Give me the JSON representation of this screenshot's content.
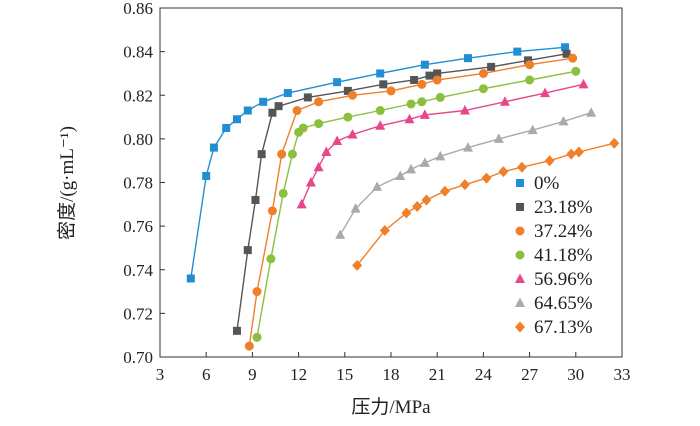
{
  "chart_data": {
    "type": "scatter",
    "title": "",
    "xlabel": "压力/MPa",
    "ylabel": "密度/(g·mL⁻¹)",
    "xlim": [
      3,
      33
    ],
    "ylim": [
      0.7,
      0.86
    ],
    "xticks": [
      3,
      6,
      9,
      12,
      15,
      18,
      21,
      24,
      27,
      30,
      33
    ],
    "yticks": [
      0.7,
      0.72,
      0.74,
      0.76,
      0.78,
      0.8,
      0.82,
      0.84,
      0.86
    ],
    "grid": false,
    "legend": "right",
    "series": [
      {
        "name": "0%",
        "marker": "square",
        "color": "#1f8fd1",
        "points": [
          [
            5.0,
            0.736
          ],
          [
            6.0,
            0.783
          ],
          [
            6.5,
            0.796
          ],
          [
            7.3,
            0.805
          ],
          [
            8.0,
            0.809
          ],
          [
            8.7,
            0.813
          ],
          [
            9.7,
            0.817
          ],
          [
            11.3,
            0.821
          ],
          [
            14.5,
            0.826
          ],
          [
            17.3,
            0.83
          ],
          [
            20.2,
            0.834
          ],
          [
            23.0,
            0.837
          ],
          [
            26.2,
            0.84
          ],
          [
            29.3,
            0.842
          ]
        ]
      },
      {
        "name": "23.18%",
        "marker": "square",
        "color": "#555555",
        "points": [
          [
            8.0,
            0.712
          ],
          [
            8.7,
            0.749
          ],
          [
            9.2,
            0.772
          ],
          [
            9.6,
            0.793
          ],
          [
            10.3,
            0.812
          ],
          [
            10.7,
            0.815
          ],
          [
            12.6,
            0.819
          ],
          [
            15.2,
            0.822
          ],
          [
            17.5,
            0.825
          ],
          [
            19.5,
            0.827
          ],
          [
            20.5,
            0.829
          ],
          [
            21.0,
            0.83
          ],
          [
            24.5,
            0.833
          ],
          [
            26.9,
            0.836
          ],
          [
            29.4,
            0.839
          ]
        ]
      },
      {
        "name": "37.24%",
        "marker": "circle",
        "color": "#f07f2a",
        "points": [
          [
            8.8,
            0.705
          ],
          [
            9.3,
            0.73
          ],
          [
            10.3,
            0.767
          ],
          [
            10.9,
            0.793
          ],
          [
            11.9,
            0.813
          ],
          [
            13.3,
            0.817
          ],
          [
            15.5,
            0.82
          ],
          [
            18.0,
            0.822
          ],
          [
            20.0,
            0.825
          ],
          [
            21.0,
            0.827
          ],
          [
            24.0,
            0.83
          ],
          [
            27.0,
            0.834
          ],
          [
            29.8,
            0.837
          ]
        ]
      },
      {
        "name": "41.18%",
        "marker": "circle",
        "color": "#8dbf3f",
        "points": [
          [
            9.3,
            0.709
          ],
          [
            10.2,
            0.745
          ],
          [
            11.0,
            0.775
          ],
          [
            11.6,
            0.793
          ],
          [
            12.0,
            0.803
          ],
          [
            12.3,
            0.805
          ],
          [
            13.3,
            0.807
          ],
          [
            15.2,
            0.81
          ],
          [
            17.3,
            0.813
          ],
          [
            19.3,
            0.816
          ],
          [
            20.0,
            0.817
          ],
          [
            21.2,
            0.819
          ],
          [
            24.0,
            0.823
          ],
          [
            27.0,
            0.827
          ],
          [
            30.0,
            0.831
          ]
        ]
      },
      {
        "name": "56.96%",
        "marker": "triangle",
        "color": "#e8458a",
        "points": [
          [
            12.2,
            0.77
          ],
          [
            12.8,
            0.78
          ],
          [
            13.3,
            0.787
          ],
          [
            13.8,
            0.794
          ],
          [
            14.5,
            0.799
          ],
          [
            15.5,
            0.802
          ],
          [
            17.3,
            0.806
          ],
          [
            19.2,
            0.809
          ],
          [
            20.2,
            0.811
          ],
          [
            22.8,
            0.813
          ],
          [
            25.4,
            0.817
          ],
          [
            28.0,
            0.821
          ],
          [
            30.5,
            0.825
          ]
        ]
      },
      {
        "name": "64.65%",
        "marker": "triangle",
        "color": "#aaaaaa",
        "points": [
          [
            14.7,
            0.756
          ],
          [
            15.7,
            0.768
          ],
          [
            17.1,
            0.778
          ],
          [
            18.6,
            0.783
          ],
          [
            19.3,
            0.786
          ],
          [
            20.2,
            0.789
          ],
          [
            21.2,
            0.792
          ],
          [
            23.0,
            0.796
          ],
          [
            25.0,
            0.8
          ],
          [
            27.2,
            0.804
          ],
          [
            29.2,
            0.808
          ],
          [
            31.0,
            0.812
          ]
        ]
      },
      {
        "name": "67.13%",
        "marker": "diamond",
        "color": "#f07f2a",
        "points": [
          [
            15.8,
            0.742
          ],
          [
            17.6,
            0.758
          ],
          [
            19.0,
            0.766
          ],
          [
            19.7,
            0.769
          ],
          [
            20.3,
            0.772
          ],
          [
            21.5,
            0.776
          ],
          [
            22.8,
            0.779
          ],
          [
            24.2,
            0.782
          ],
          [
            25.3,
            0.785
          ],
          [
            26.5,
            0.787
          ],
          [
            28.3,
            0.79
          ],
          [
            29.7,
            0.793
          ],
          [
            30.2,
            0.794
          ],
          [
            32.5,
            0.798
          ]
        ]
      }
    ]
  }
}
